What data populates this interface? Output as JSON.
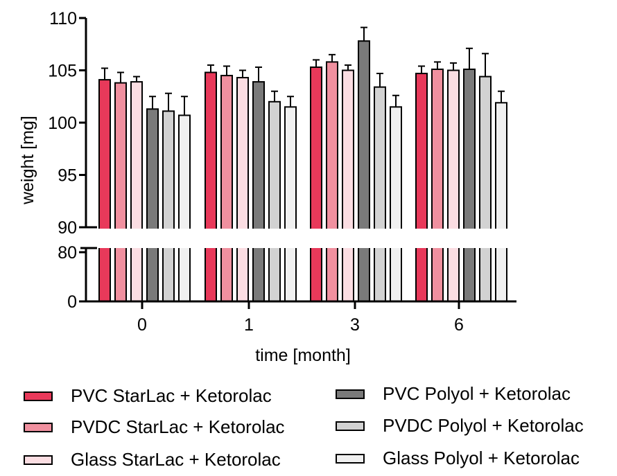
{
  "chart_data": {
    "type": "bar",
    "xlabel": "time [month]",
    "ylabel": "weight [mg]",
    "categories": [
      "0",
      "1",
      "3",
      "6"
    ],
    "y_axis": {
      "broken": true,
      "lower_segment": [
        0,
        80
      ],
      "upper_segment": [
        90,
        110
      ],
      "ticks_upper": [
        "90",
        "95",
        "100",
        "105",
        "110"
      ],
      "ticks_lower": [
        "0",
        "80"
      ]
    },
    "series": [
      {
        "name": "PVC StarLac + Ketorolac",
        "color": "#e8395a",
        "values": [
          104.1,
          104.8,
          105.3,
          104.7
        ],
        "errors": [
          1.1,
          0.7,
          0.7,
          0.7
        ]
      },
      {
        "name": "PVDC StarLac + Ketorolac",
        "color": "#f0909f",
        "values": [
          103.8,
          104.5,
          105.8,
          105.1
        ],
        "errors": [
          1.0,
          0.9,
          0.7,
          0.7
        ]
      },
      {
        "name": "Glass StarLac + Ketorolac",
        "color": "#fbdde2",
        "values": [
          103.9,
          104.3,
          105.0,
          105.0
        ],
        "errors": [
          0.5,
          0.7,
          0.5,
          0.7
        ]
      },
      {
        "name": "PVC Polyol + Ketorolac",
        "color": "#7a7a7a",
        "values": [
          101.3,
          103.9,
          107.8,
          105.1
        ],
        "errors": [
          1.2,
          1.4,
          1.3,
          2.0
        ]
      },
      {
        "name": "PVDC Polyol + Ketorolac",
        "color": "#d2d2d2",
        "values": [
          101.1,
          102.0,
          103.4,
          104.4
        ],
        "errors": [
          1.7,
          1.0,
          1.3,
          2.2
        ]
      },
      {
        "name": "Glass Polyol + Ketorolac",
        "color": "#f0f0f0",
        "values": [
          100.7,
          101.5,
          101.5,
          101.9
        ],
        "errors": [
          1.8,
          1.0,
          1.1,
          1.1
        ]
      }
    ]
  }
}
